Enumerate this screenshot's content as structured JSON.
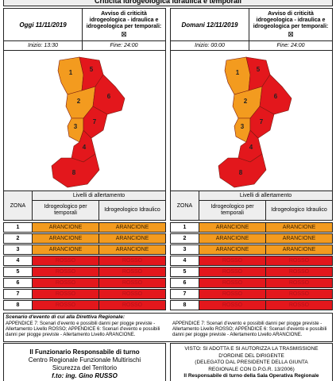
{
  "header": {
    "title": "Criticità idrogeologica idraulica e temporali"
  },
  "level_colors": {
    "ARANCIONE": "#f39b1f",
    "ROSSO": "#e3171c"
  },
  "panels": [
    {
      "day": "Oggi 11/11/2019",
      "notice": "Avviso di criticità idrogeologica - idraulica e idrogeologica per temporali:",
      "notice_mark": "⊠",
      "start": "Inizio: 13:30",
      "end": "Fine: 24:00",
      "table": {
        "zone_header": "ZONA",
        "levels_header": "Livelli di allertamento",
        "columns": [
          "Idrogeologico per temporali",
          "Idrogeologico Idraulico"
        ],
        "rows": [
          {
            "zone": "1",
            "levels": [
              "ARANCIONE",
              "ARANCIONE"
            ]
          },
          {
            "zone": "2",
            "levels": [
              "ARANCIONE",
              "ARANCIONE"
            ]
          },
          {
            "zone": "3",
            "levels": [
              "ARANCIONE",
              "ARANCIONE"
            ]
          },
          {
            "zone": "4",
            "levels": [
              "ROSSO",
              "ROSSO"
            ]
          },
          {
            "zone": "5",
            "levels": [
              "ROSSO",
              "ROSSO"
            ]
          },
          {
            "zone": "6",
            "levels": [
              "ROSSO",
              "ROSSO"
            ]
          },
          {
            "zone": "7",
            "levels": [
              "ROSSO",
              "ROSSO"
            ]
          },
          {
            "zone": "8",
            "levels": [
              "ROSSO",
              "ROSSO"
            ]
          }
        ]
      }
    },
    {
      "day": "Domani 12/11/2019",
      "notice": "Avviso di criticità idrogeologica - idraulica e idrogeologica per temporali:",
      "notice_mark": "⊠",
      "start": "Inizio: 00:00",
      "end": "Fine: 24:00",
      "table": {
        "zone_header": "ZONA",
        "levels_header": "Livelli di allertamento",
        "columns": [
          "Idrogeologico per temporali",
          "Idrogeologico Idraulico"
        ],
        "rows": [
          {
            "zone": "1",
            "levels": [
              "ARANCIONE",
              "ARANCIONE"
            ]
          },
          {
            "zone": "2",
            "levels": [
              "ARANCIONE",
              "ARANCIONE"
            ]
          },
          {
            "zone": "3",
            "levels": [
              "ARANCIONE",
              "ARANCIONE"
            ]
          },
          {
            "zone": "4",
            "levels": [
              "ROSSO",
              "ROSSO"
            ]
          },
          {
            "zone": "5",
            "levels": [
              "ROSSO",
              "ROSSO"
            ]
          },
          {
            "zone": "6",
            "levels": [
              "ROSSO",
              "ROSSO"
            ]
          },
          {
            "zone": "7",
            "levels": [
              "ROSSO",
              "ROSSO"
            ]
          },
          {
            "zone": "8",
            "levels": [
              "ROSSO",
              "ROSSO"
            ]
          }
        ]
      }
    }
  ],
  "scenario": {
    "title": "Scenario d'evento di cui alla Direttiva Regionale:",
    "left": "APPENDICE 7: Scenari d'evento e possibili danni per piogge previste - Allertamento Livello ROSSO; APPENDICE 6: Scenari d'evento e possibili danni per piogge previste - Allertamento Livello ARANCIONE.",
    "right": "APPENDICE 7: Scenari d'evento e possibili danni per piogge previste - Allertamento Livello ROSSO; APPENDICE 6: Scenari d'evento e possibili danni per piogge previste - Allertamento Livello ARANCIONE."
  },
  "footer": {
    "left": [
      "Il Funzionario Responsabile di turno",
      "Centro Regionale Funzionale Multirischi",
      "Sicurezza del Territorio",
      "f.to: ing. Gino RUSSO"
    ],
    "right": [
      "VISTO: SI ADOTTA E SI AUTORIZZA LA TRASMISSIONE",
      "D'ORDINE DEL DIRIGENTE",
      "(DELEGATO DAL PRESIDENTE DELLA GIUNTA",
      "REGIONALE CON D.P.G.R. 13/2006)",
      "Il Responsabile di turno della Sala Operativa Regionale"
    ]
  }
}
